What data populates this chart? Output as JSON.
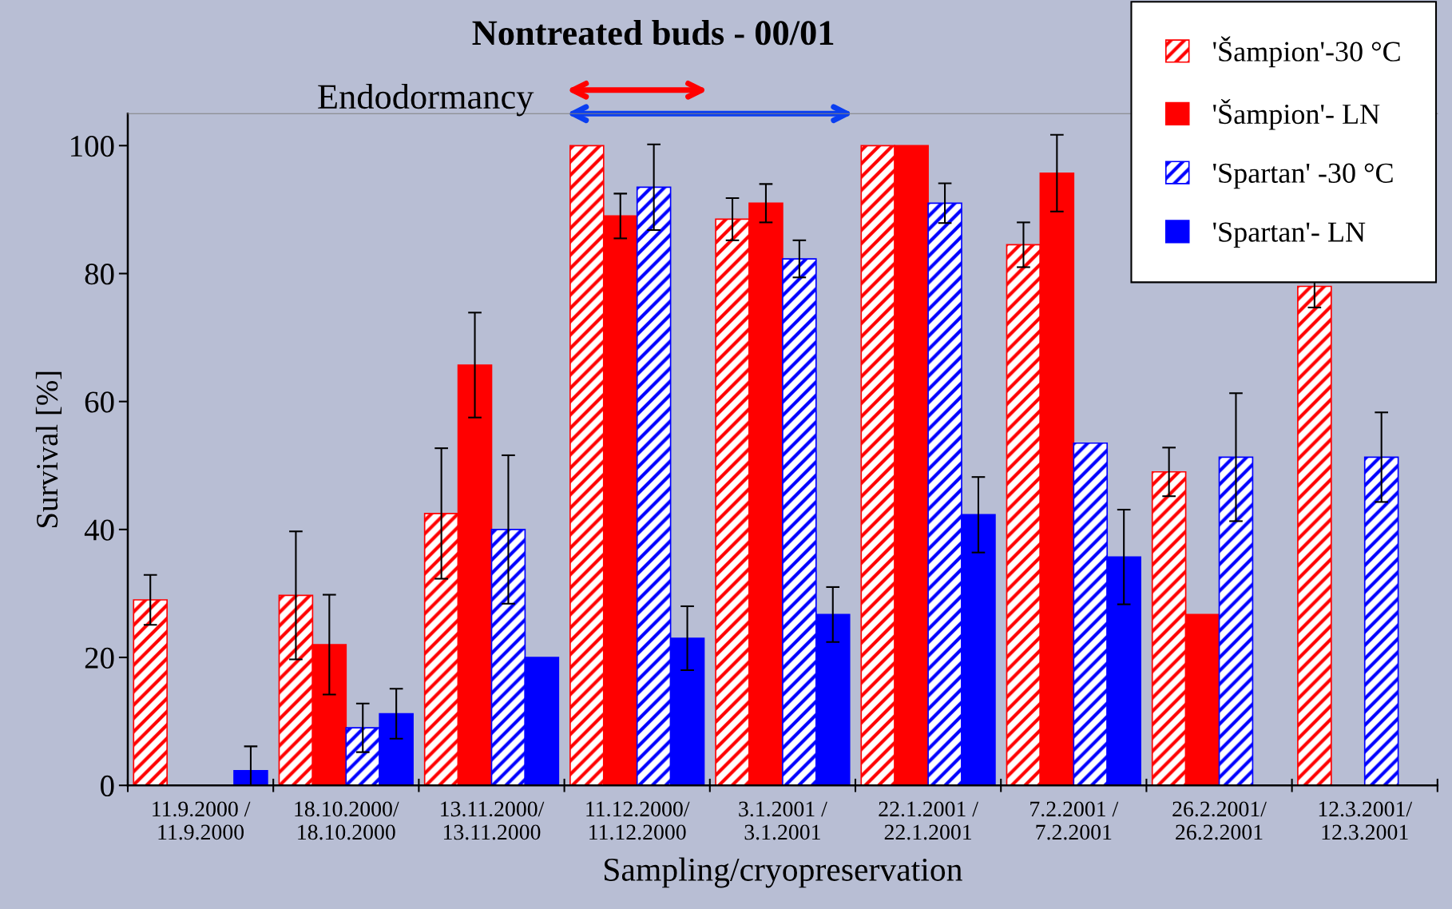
{
  "chart_data": {
    "type": "bar",
    "title": "Nontreated buds - 00/01",
    "xlabel": "Sampling/cryopreservation",
    "ylabel": "Survival [%]",
    "categories": [
      "11.9.2000 /\n11.9.2000",
      "18.10.2000/\n18.10.2000",
      "13.11.2000/\n13.11.2000",
      "11.12.2000/\n11.12.2000",
      "3.1.2001 /\n3.1.2001",
      "22.1.2001 /\n22.1.2001",
      "7.2.2001 /\n7.2.2001",
      "26.2.2001/\n26.2.2001",
      "12.3.2001/\n12.3.2001"
    ],
    "series": [
      {
        "name": "'Šampion'-30 °C",
        "color": "#ff0000",
        "values": [
          29,
          29.7,
          42.5,
          100,
          88.5,
          100,
          84.5,
          49,
          78
        ],
        "errors": [
          3.9,
          10,
          10.2,
          null,
          3.3,
          null,
          3.5,
          3.8,
          3.3
        ]
      },
      {
        "name": "'Šampion'- LN",
        "color": "#ff0000",
        "values": [
          0,
          22,
          65.7,
          89,
          91,
          100,
          95.7,
          26.7,
          0
        ],
        "errors": [
          null,
          7.8,
          8.2,
          3.5,
          3,
          null,
          6,
          null,
          null
        ]
      },
      {
        "name": "'Spartan' -30 °C",
        "color": "#0000ff",
        "values": [
          0,
          9,
          40,
          93.5,
          82.3,
          91,
          53.5,
          51.3,
          51.3
        ],
        "errors": [
          null,
          3.8,
          11.6,
          6.7,
          2.9,
          3.1,
          null,
          10,
          7
        ]
      },
      {
        "name": "'Spartan'- LN",
        "color": "#0000ff",
        "values": [
          2.3,
          11.2,
          20,
          23,
          26.7,
          42.3,
          35.7,
          0,
          0
        ],
        "errors": [
          3.8,
          3.9,
          null,
          5,
          4.3,
          5.9,
          7.4,
          null,
          null
        ]
      }
    ],
    "ylim": [
      0,
      105
    ],
    "yticks": [
      0,
      20,
      40,
      60,
      80,
      100
    ],
    "grid": false,
    "legend": "top right",
    "annotations": [
      "Endodormancy"
    ]
  }
}
